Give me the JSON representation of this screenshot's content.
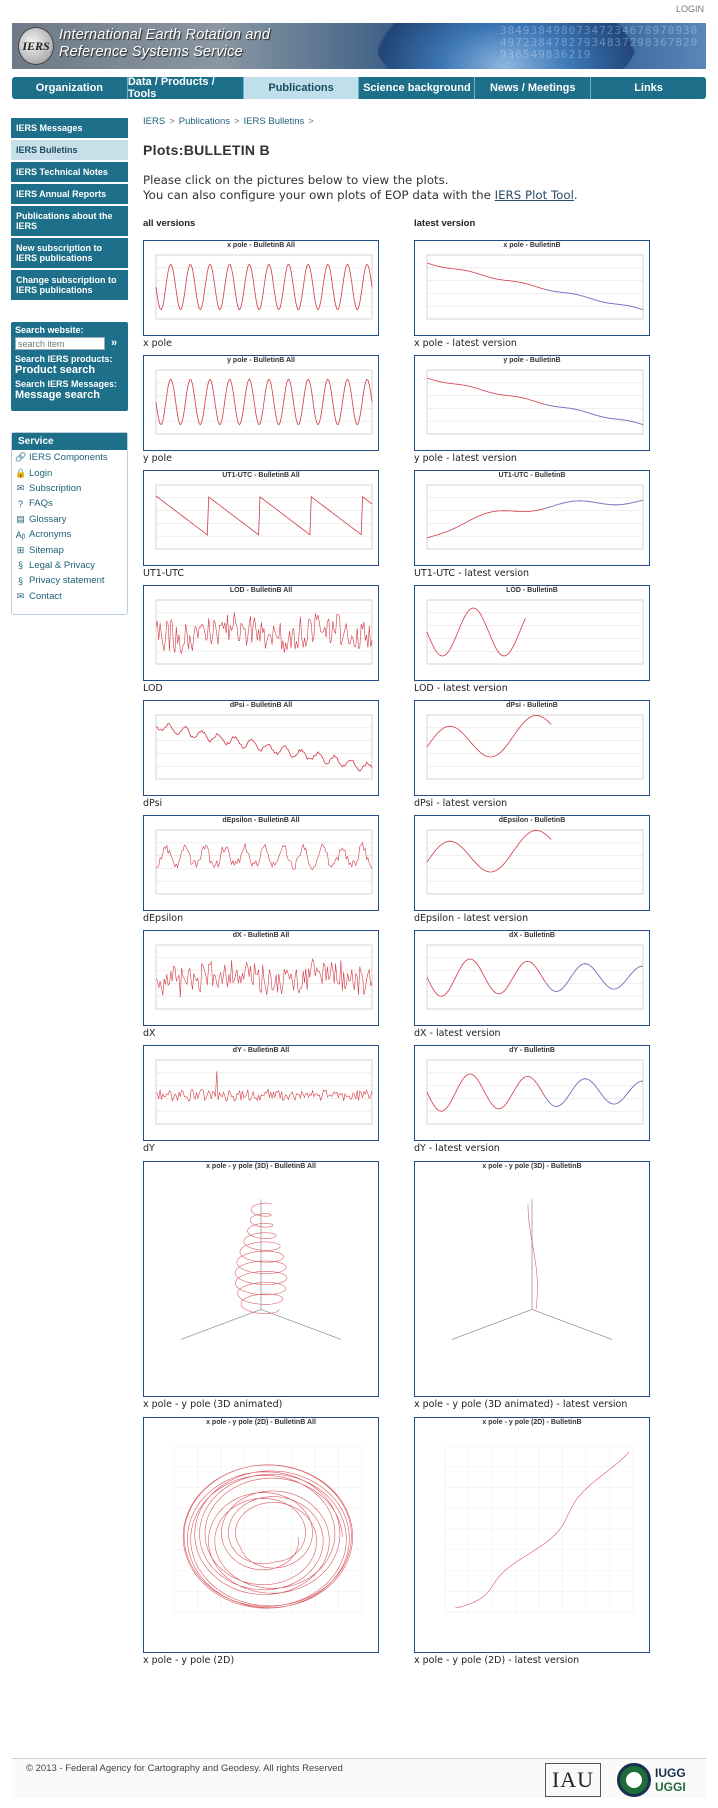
{
  "header": {
    "login": "LOGIN",
    "logo_text": "IERS",
    "title_line1": "International Earth Rotation and",
    "title_line2": "Reference Systems Service",
    "digits": "3849384980734723467897093049723847827934837298367820936549836219"
  },
  "nav": {
    "items": [
      {
        "label": "Organization"
      },
      {
        "label": "Data / Products / Tools"
      },
      {
        "label": "Publications"
      },
      {
        "label": "Science background"
      },
      {
        "label": "News / Meetings"
      },
      {
        "label": "Links"
      }
    ]
  },
  "sidebar": {
    "items": [
      {
        "label": "IERS Messages"
      },
      {
        "label": "IERS Bulletins"
      },
      {
        "label": "IERS Technical Notes"
      },
      {
        "label": "IERS Annual Reports"
      },
      {
        "label": "Publications about the IERS"
      },
      {
        "label": "New subscription to IERS publications"
      },
      {
        "label": "Change subscription to IERS publications"
      }
    ]
  },
  "search": {
    "website_label": "Search website:",
    "placeholder": "search item",
    "go_glyph": "»",
    "products_label": "Search IERS products:",
    "products_link": "Product search",
    "messages_label": "Search IERS Messages:",
    "messages_link": "Message search"
  },
  "service": {
    "title": "Service",
    "items": [
      {
        "label": "IERS Components",
        "icon": "🔗"
      },
      {
        "label": "Login",
        "icon": "🔒"
      },
      {
        "label": "Subscription",
        "icon": "✉"
      },
      {
        "label": "FAQs",
        "icon": "?"
      },
      {
        "label": "Glossary",
        "icon": "▤"
      },
      {
        "label": "Acronyms",
        "icon": "Aᵦ"
      },
      {
        "label": "Sitemap",
        "icon": "⊞"
      },
      {
        "label": "Legal & Privacy",
        "icon": "§"
      },
      {
        "label": "Privacy statement",
        "icon": "§"
      },
      {
        "label": "Contact",
        "icon": "✉"
      }
    ]
  },
  "breadcrumb": {
    "items": [
      "IERS",
      "Publications",
      "IERS Bulletins"
    ],
    "sep": ">"
  },
  "main": {
    "title": "Plots:BULLETIN B",
    "intro_line1": "Please click on the pictures below to view the plots.",
    "intro_line2_pre": "You can also configure your own plots of EOP data with the ",
    "intro_link": "IERS Plot Tool",
    "intro_line2_post": ".",
    "col_all": "all versions",
    "col_latest": "latest version"
  },
  "plots": [
    {
      "title_all": "x pole - BulletinB All",
      "title_latest": "x pole - BulletinB",
      "caption_all": "x pole",
      "caption_latest": "x pole - latest version",
      "kind_all": "sine",
      "kind_latest": "decline"
    },
    {
      "title_all": "y pole - BulletinB All",
      "title_latest": "y pole - BulletinB",
      "caption_all": "y pole",
      "caption_latest": "y pole - latest version",
      "kind_all": "sine",
      "kind_latest": "decline"
    },
    {
      "title_all": "UT1-UTC - BulletinB All",
      "title_latest": "UT1-UTC - BulletinB",
      "caption_all": "UT1-UTC",
      "caption_latest": "UT1-UTC - latest version",
      "kind_all": "saw",
      "kind_latest": "rise"
    },
    {
      "title_all": "LOD - BulletinB All",
      "title_latest": "LOD - BulletinB",
      "caption_all": "LOD",
      "caption_latest": "LOD - latest version",
      "kind_all": "noise",
      "kind_latest": "wave2"
    },
    {
      "title_all": "dPsi - BulletinB All",
      "title_latest": "dPsi - BulletinB",
      "caption_all": "dPsi",
      "caption_latest": "dPsi - latest version",
      "kind_all": "zigdown",
      "kind_latest": "wave3"
    },
    {
      "title_all": "dEpsilon - BulletinB All",
      "title_latest": "dEpsilon - BulletinB",
      "caption_all": "dEpsilon",
      "caption_latest": "dEpsilon - latest version",
      "kind_all": "spiky",
      "kind_latest": "wave3"
    },
    {
      "title_all": "dX - BulletinB All",
      "title_latest": "dX - BulletinB",
      "caption_all": "dX",
      "caption_latest": "dX - latest version",
      "kind_all": "noise",
      "kind_latest": "zig"
    },
    {
      "title_all": "dY - BulletinB All",
      "title_latest": "dY - BulletinB",
      "caption_all": "dY",
      "caption_latest": "dY - latest version",
      "kind_all": "flatnoise",
      "kind_latest": "zig"
    },
    {
      "title_all": "x pole - y pole (3D) - BulletinB All",
      "title_latest": "x pole - y pole (3D) - BulletinB",
      "caption_all": "x pole - y pole (3D animated)",
      "caption_latest": "x pole - y pole (3D animated) - latest version",
      "kind_all": "helix",
      "kind_latest": "helix1"
    },
    {
      "title_all": "x pole - y pole (2D) - BulletinB All",
      "title_latest": "x pole - y pole (2D) - BulletinB",
      "caption_all": "x pole - y pole (2D)",
      "caption_latest": "x pole - y pole (2D) - latest version",
      "kind_all": "spiral",
      "kind_latest": "path"
    }
  ],
  "footer": {
    "copyright": "© 2013 - Federal Agency for Cartography and Geodesy. All rights Reserved",
    "iau": "IAU",
    "iugg_line1": "IUGG",
    "iugg_line2": "UGGI"
  },
  "colors": {
    "nav_bg": "#1d6f8a",
    "nav_active": "#bfe0ea",
    "plot_red": "#d33b45",
    "plot_blue": "#6c7fd6",
    "frame": "#1f4f86"
  }
}
